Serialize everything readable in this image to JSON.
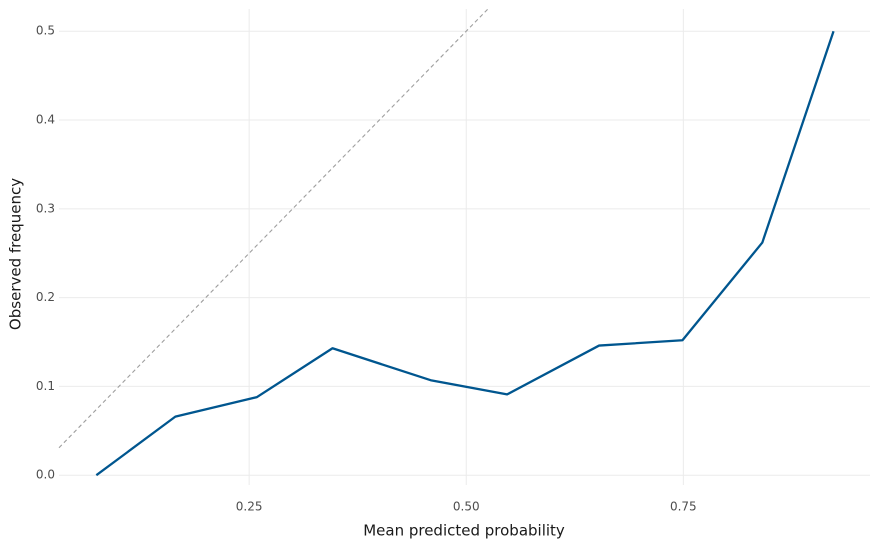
{
  "chart_data": {
    "type": "line",
    "x_label": "Mean predicted probability",
    "y_label": "Observed frequency",
    "x": [
      0.074,
      0.165,
      0.259,
      0.346,
      0.459,
      0.547,
      0.653,
      0.749,
      0.841,
      0.923
    ],
    "values": [
      0.0,
      0.066,
      0.088,
      0.143,
      0.107,
      0.091,
      0.146,
      0.152,
      0.262,
      0.5
    ],
    "color": "#00568f",
    "xlim": [
      0.031,
      0.965
    ],
    "ylim": [
      -0.011,
      0.525
    ],
    "xticks": [
      0.25,
      {
        "value": 0.5,
        "label": "0.50"
      },
      0.75
    ],
    "yticks": [
      {
        "value": 0,
        "label": "0.0"
      },
      0.1,
      0.2,
      0.3,
      0.4,
      0.5
    ],
    "grid": true,
    "diagonal": true,
    "diagonal_color": "#9e9e9e"
  }
}
